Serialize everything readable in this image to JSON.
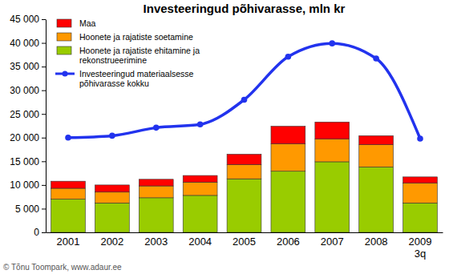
{
  "chart_data": {
    "type": "bar",
    "title": "Investeeringud põhivarasse, mln kr",
    "stacked": true,
    "categories": [
      "2001",
      "2002",
      "2003",
      "2004",
      "2005",
      "2006",
      "2007",
      "2008",
      "2009\n3q"
    ],
    "series": [
      {
        "name": "Hoonete ja rajatiste ehitamine ja rekonstrueerimine",
        "color": "#99cc00",
        "values": [
          7000,
          6200,
          7300,
          7800,
          11300,
          12900,
          14900,
          13800,
          6200
        ]
      },
      {
        "name": "Hoonete ja rajatiste soetamine",
        "color": "#ff9900",
        "values": [
          2300,
          2300,
          2500,
          2800,
          3000,
          5800,
          4800,
          4700,
          4200
        ]
      },
      {
        "name": "Maa",
        "color": "#ff0000",
        "values": [
          1500,
          1500,
          1400,
          1400,
          2200,
          3700,
          3600,
          1900,
          1300
        ]
      },
      {
        "name": "Investeeringud materiaalsesse põhivarasse kokku",
        "type": "line",
        "color": "#2233ee",
        "marker": "circle",
        "values": [
          20000,
          20400,
          22100,
          22800,
          28000,
          37100,
          39900,
          36700,
          19800
        ]
      }
    ],
    "ylim": [
      0,
      45000
    ],
    "yticks": [
      0,
      {
        "value": 5000,
        "label": "5 000"
      },
      {
        "value": 10000,
        "label": "10 000"
      },
      {
        "value": 15000,
        "label": "15 000"
      },
      {
        "value": 20000,
        "label": "20 000"
      },
      {
        "value": 25000,
        "label": "25 000"
      },
      {
        "value": 30000,
        "label": "30 000"
      },
      {
        "value": 35000,
        "label": "35 000"
      },
      {
        "value": 40000,
        "label": "40 000"
      },
      {
        "value": 45000,
        "label": "45 000"
      }
    ],
    "grid": false,
    "legend": "upper left",
    "source": "© Tõnu Toompark, www.adaur.ee"
  }
}
